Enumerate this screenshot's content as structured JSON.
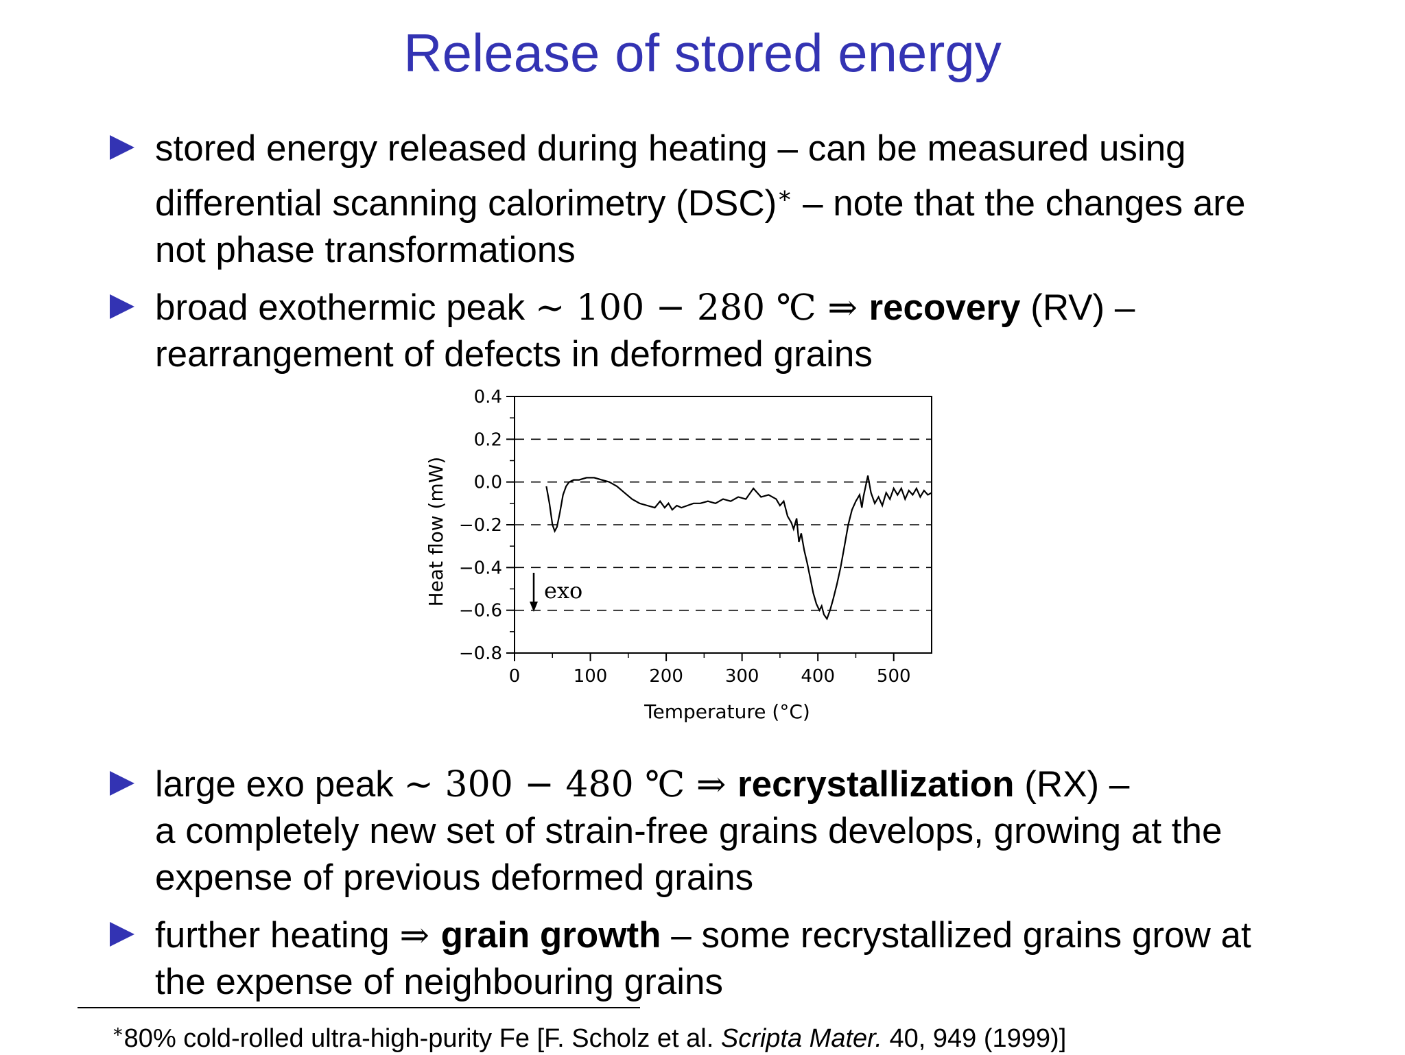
{
  "slide": {
    "title": "Release of stored energy"
  },
  "bullets": [
    {
      "line1": "stored energy released during heating – can be measured using",
      "line2a": "differential scanning calorimetry (DSC)",
      "line2_ast": "∗",
      "line2b": " – note that the changes are",
      "line3": "not phase transformations"
    },
    {
      "pre": "broad exothermic peak ",
      "math": "∼ 100 − 280 ℃ ⇒ ",
      "bold": "recovery",
      "post": " (RV) –",
      "line2": "rearrangement of defects in deformed grains"
    },
    {
      "pre": "large exo peak ",
      "math": "∼ 300 − 480 ℃ ⇒ ",
      "bold": "recrystallization",
      "post": " (RX) –",
      "line2": "a completely new set of strain-free grains develops, growing at the",
      "line3": "expense of previous deformed grains"
    },
    {
      "pre": "further heating ",
      "math": "⇒ ",
      "bold": "grain growth",
      "post": " – some recrystallized grains grow at",
      "line2": "the expense of neighbouring grains"
    }
  ],
  "footnote": {
    "ast": "∗",
    "pre": "80% cold-rolled ultra-high-purity Fe [F. Scholz et al. ",
    "journal": "Scripta Mater.",
    "post": " 40, 949 (1999)]"
  },
  "chart_data": {
    "type": "line",
    "title": "",
    "xlabel": "Temperature (°C)",
    "ylabel": "Heat flow (mW)",
    "xlim": [
      0,
      550
    ],
    "ylim": [
      -0.8,
      0.4
    ],
    "xticks": [
      "0",
      "100",
      "200",
      "300",
      "400",
      "500"
    ],
    "yticks": [
      "0.4",
      "0.2",
      "0.0",
      "−0.2",
      "−0.4",
      "−0.6",
      "−0.8"
    ],
    "grid": "dashed horizontal at -0.6, -0.4, -0.2, 0.0, 0.2",
    "annotation": "exo",
    "series": [
      {
        "x": [
          42,
          46,
          50,
          53,
          56,
          60,
          64,
          68,
          72,
          78,
          85,
          95,
          105,
          115,
          125,
          135,
          145,
          155,
          165,
          175,
          185,
          192,
          198,
          203,
          208,
          214,
          220,
          228,
          236,
          245,
          255,
          265,
          275,
          285,
          295,
          305,
          315,
          325,
          335,
          345,
          350,
          355,
          360,
          365,
          368,
          372,
          375,
          378,
          382,
          386,
          390,
          394,
          398,
          402,
          405,
          408,
          412,
          416,
          420,
          425,
          430,
          435,
          440,
          445,
          450,
          455,
          458,
          460,
          463,
          466,
          470,
          475,
          480,
          485,
          490,
          495,
          500,
          505,
          510,
          515,
          520,
          525,
          530,
          535,
          540,
          545,
          550
        ],
        "y": [
          -0.02,
          -0.1,
          -0.2,
          -0.23,
          -0.21,
          -0.14,
          -0.06,
          -0.02,
          0.0,
          0.01,
          0.01,
          0.02,
          0.02,
          0.01,
          0.0,
          -0.02,
          -0.05,
          -0.08,
          -0.1,
          -0.11,
          -0.12,
          -0.09,
          -0.12,
          -0.1,
          -0.13,
          -0.11,
          -0.12,
          -0.11,
          -0.1,
          -0.1,
          -0.09,
          -0.1,
          -0.08,
          -0.09,
          -0.07,
          -0.08,
          -0.03,
          -0.07,
          -0.06,
          -0.08,
          -0.11,
          -0.09,
          -0.16,
          -0.19,
          -0.22,
          -0.17,
          -0.28,
          -0.24,
          -0.32,
          -0.38,
          -0.45,
          -0.52,
          -0.57,
          -0.6,
          -0.58,
          -0.62,
          -0.64,
          -0.6,
          -0.55,
          -0.48,
          -0.4,
          -0.3,
          -0.2,
          -0.13,
          -0.09,
          -0.06,
          -0.12,
          -0.07,
          -0.02,
          0.03,
          -0.05,
          -0.1,
          -0.07,
          -0.11,
          -0.05,
          -0.08,
          -0.03,
          -0.06,
          -0.03,
          -0.08,
          -0.04,
          -0.06,
          -0.03,
          -0.07,
          -0.04,
          -0.06,
          -0.05
        ]
      }
    ]
  }
}
